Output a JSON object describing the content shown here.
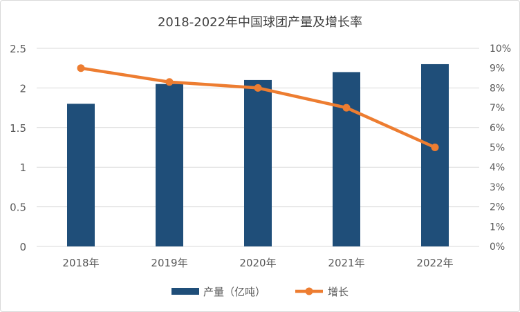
{
  "chart_data": {
    "type": "bar+line",
    "title": "2018-2022年中国球团产量及增长率",
    "categories": [
      "2018年",
      "2019年",
      "2020年",
      "2021年",
      "2022年"
    ],
    "series": [
      {
        "name": "产量（亿吨）",
        "type": "bar",
        "axis": "left",
        "color": "#1f4e79",
        "values": [
          1.8,
          2.05,
          2.1,
          2.2,
          2.3
        ]
      },
      {
        "name": "增长",
        "type": "line",
        "axis": "right",
        "color": "#ed7d31",
        "values": [
          9,
          8.3,
          8,
          7,
          5
        ]
      }
    ],
    "y_left": {
      "min": 0,
      "max": 2.5,
      "ticks": [
        "0",
        "0.5",
        "1",
        "1.5",
        "2",
        "2.5"
      ]
    },
    "y_right": {
      "min": 0,
      "max": 10,
      "unit": "%",
      "ticks": [
        "0%",
        "1%",
        "2%",
        "3%",
        "4%",
        "5%",
        "6%",
        "7%",
        "8%",
        "9%",
        "10%"
      ]
    },
    "grid": true,
    "legend": "bottom"
  }
}
